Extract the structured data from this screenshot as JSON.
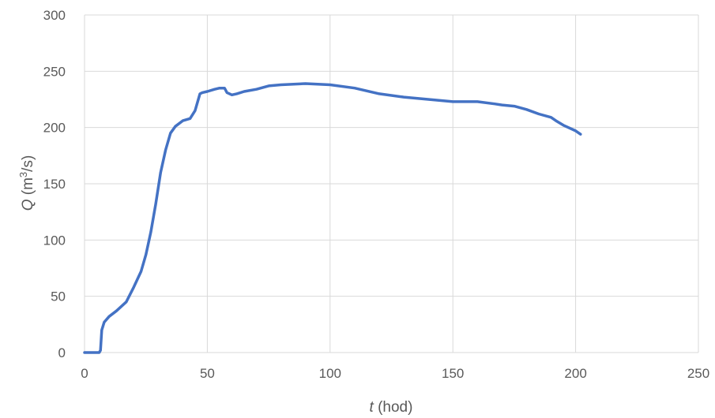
{
  "chart_data": {
    "type": "line",
    "title": "",
    "xlabel": {
      "var": "t",
      "unit": "(hod)"
    },
    "ylabel": {
      "var": "Q",
      "unit_open": "(m",
      "unit_sup": "3",
      "unit_close": "/s)"
    },
    "xlim": [
      0,
      250
    ],
    "ylim": [
      0,
      300
    ],
    "x_ticks": [
      0,
      50,
      100,
      150,
      200,
      250
    ],
    "y_ticks": [
      0,
      50,
      100,
      150,
      200,
      250,
      300
    ],
    "x_tick_labels": [
      "0",
      "50",
      "100",
      "150",
      "200",
      "250"
    ],
    "y_tick_labels": [
      "0",
      "50",
      "100",
      "150",
      "200",
      "250",
      "300"
    ],
    "grid": true,
    "legend": "none",
    "line_color": "#4472c4",
    "series": [
      {
        "x": [
          0,
          6,
          6.5,
          7,
          8,
          10,
          13,
          17,
          20,
          23,
          25,
          27,
          29,
          31,
          33,
          35,
          37,
          40,
          43,
          45,
          47,
          48,
          50,
          53,
          55,
          57,
          58,
          60,
          62,
          65,
          70,
          75,
          80,
          90,
          100,
          110,
          120,
          130,
          140,
          150,
          160,
          167,
          170,
          175,
          180,
          185,
          190,
          192,
          195,
          200,
          202
        ],
        "y": [
          0,
          0,
          2,
          20,
          27,
          32,
          37,
          45,
          58,
          72,
          87,
          107,
          132,
          160,
          180,
          195,
          201,
          206,
          208,
          215,
          230,
          231,
          232,
          234,
          235,
          235,
          231,
          229,
          230,
          232,
          234,
          237,
          238,
          239,
          238,
          235,
          230,
          227,
          225,
          223,
          223,
          221,
          220,
          219,
          216,
          212,
          209,
          206,
          202,
          197,
          194
        ]
      }
    ]
  }
}
